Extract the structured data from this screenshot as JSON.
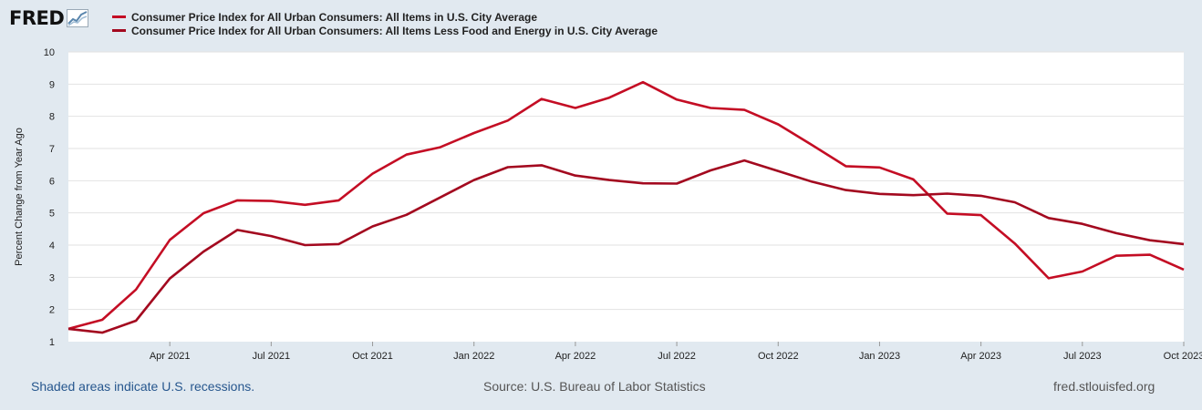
{
  "header": {
    "logo_text": "FRED",
    "logo_icon": "chart-trend-icon"
  },
  "colors": {
    "background": "#e1e9f0",
    "plot_background": "#ffffff",
    "series_1": "#c40d24",
    "series_2": "#a3091f",
    "grid": "#dddddd",
    "footer_link": "#27578e"
  },
  "footer": {
    "recessions_note": "Shaded areas indicate U.S. recessions.",
    "source": "Source: U.S. Bureau of Labor Statistics",
    "site": "fred.stlouisfed.org"
  },
  "chart_data": {
    "type": "line",
    "title": "",
    "xlabel": "",
    "ylabel": "Percent Change from Year Ago",
    "ylim": [
      1,
      10
    ],
    "y_ticks": [
      1,
      2,
      3,
      4,
      5,
      6,
      7,
      8,
      9,
      10
    ],
    "grid": true,
    "legend": "top-left",
    "x_ticks": [
      {
        "index": 3,
        "label": "Apr 2021"
      },
      {
        "index": 6,
        "label": "Jul 2021"
      },
      {
        "index": 9,
        "label": "Oct 2021"
      },
      {
        "index": 12,
        "label": "Jan 2022"
      },
      {
        "index": 15,
        "label": "Apr 2022"
      },
      {
        "index": 18,
        "label": "Jul 2022"
      },
      {
        "index": 21,
        "label": "Oct 2022"
      },
      {
        "index": 24,
        "label": "Jan 2023"
      },
      {
        "index": 27,
        "label": "Apr 2023"
      },
      {
        "index": 30,
        "label": "Jul 2023"
      },
      {
        "index": 33,
        "label": "Oct 2023"
      }
    ],
    "x": [
      "Jan 2021",
      "Feb 2021",
      "Mar 2021",
      "Apr 2021",
      "May 2021",
      "Jun 2021",
      "Jul 2021",
      "Aug 2021",
      "Sep 2021",
      "Oct 2021",
      "Nov 2021",
      "Dec 2021",
      "Jan 2022",
      "Feb 2022",
      "Mar 2022",
      "Apr 2022",
      "May 2022",
      "Jun 2022",
      "Jul 2022",
      "Aug 2022",
      "Sep 2022",
      "Oct 2022",
      "Nov 2022",
      "Dec 2022",
      "Jan 2023",
      "Feb 2023",
      "Mar 2023",
      "Apr 2023",
      "May 2023",
      "Jun 2023",
      "Jul 2023",
      "Aug 2023",
      "Sep 2023",
      "Oct 2023"
    ],
    "series": [
      {
        "name": "Consumer Price Index for All Urban Consumers: All Items in U.S. City Average",
        "color": "#c40d24",
        "values": [
          1.4,
          1.68,
          2.62,
          4.16,
          4.99,
          5.39,
          5.37,
          5.25,
          5.39,
          6.22,
          6.81,
          7.04,
          7.48,
          7.87,
          8.54,
          8.26,
          8.58,
          9.06,
          8.52,
          8.26,
          8.2,
          7.75,
          7.11,
          6.45,
          6.41,
          6.04,
          4.98,
          4.93,
          4.05,
          2.97,
          3.18,
          3.67,
          3.7,
          3.24
        ]
      },
      {
        "name": "Consumer Price Index for All Urban Consumers: All Items Less Food and Energy in U.S. City Average",
        "color": "#a3091f",
        "values": [
          1.4,
          1.28,
          1.65,
          2.96,
          3.8,
          4.47,
          4.28,
          4.0,
          4.03,
          4.58,
          4.94,
          5.48,
          6.02,
          6.42,
          6.48,
          6.16,
          6.02,
          5.92,
          5.91,
          6.32,
          6.63,
          6.3,
          5.97,
          5.71,
          5.59,
          5.55,
          5.6,
          5.53,
          5.33,
          4.84,
          4.66,
          4.37,
          4.15,
          4.03
        ]
      }
    ]
  }
}
